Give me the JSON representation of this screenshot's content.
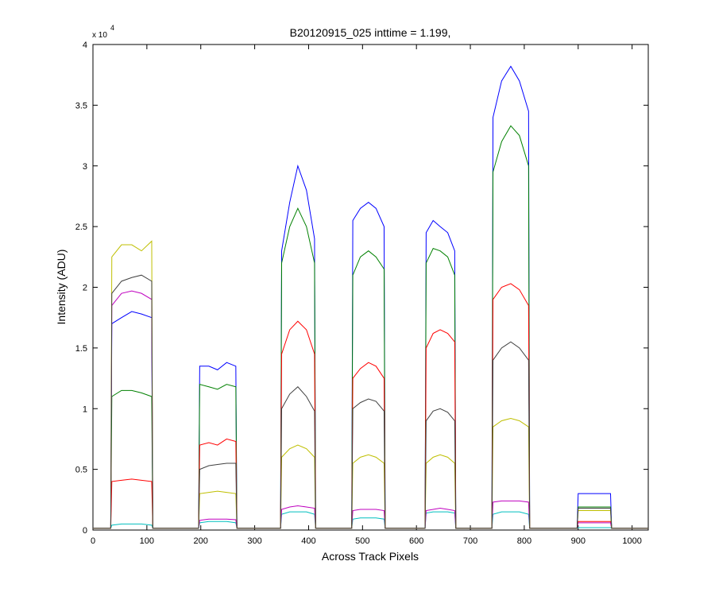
{
  "chart_data": {
    "type": "line",
    "title": "B20120915_025 inttime = 1.199,",
    "x_label": "Across Track Pixels",
    "y_label": "Intensity (ADU)",
    "y_multiplier": {
      "base": "x 10",
      "exponent": 4
    },
    "xlim": [
      0,
      1030
    ],
    "ylim": [
      0,
      40000
    ],
    "xticks": [
      0,
      100,
      200,
      300,
      400,
      500,
      600,
      700,
      800,
      900,
      1000
    ],
    "yticks": [
      0,
      {
        "value": 5000,
        "label": "0.5"
      },
      {
        "value": 10000,
        "label": "1"
      },
      {
        "value": 15000,
        "label": "1.5"
      },
      {
        "value": 20000,
        "label": "2"
      },
      {
        "value": 25000,
        "label": "2.5"
      },
      {
        "value": 30000,
        "label": "3"
      },
      {
        "value": 35000,
        "label": "3.5"
      },
      {
        "value": 40000,
        "label": "4"
      }
    ],
    "x": [
      0,
      33,
      35,
      53,
      72,
      90,
      109,
      111,
      196,
      198,
      215,
      231,
      248,
      265,
      267,
      348,
      350,
      365,
      380,
      396,
      411,
      413,
      480,
      482,
      496,
      511,
      525,
      540,
      542,
      616,
      618,
      631,
      644,
      658,
      671,
      673,
      740,
      742,
      758,
      775,
      791,
      808,
      810,
      898,
      900,
      915,
      930,
      945,
      960,
      962,
      1030
    ],
    "series": [
      {
        "color": "#0000ff",
        "values": [
          150,
          150,
          17000,
          17500,
          18000,
          17800,
          17500,
          150,
          150,
          13500,
          13500,
          13200,
          13800,
          13500,
          150,
          150,
          23000,
          27000,
          30000,
          28000,
          24000,
          150,
          150,
          25500,
          26500,
          27000,
          26500,
          25000,
          150,
          150,
          24500,
          25500,
          25000,
          24500,
          23000,
          150,
          150,
          34000,
          37000,
          38200,
          37000,
          34500,
          150,
          150,
          3000,
          3000,
          3000,
          3000,
          3000,
          150,
          150
        ]
      },
      {
        "color": "#008000",
        "values": [
          150,
          150,
          11000,
          11500,
          11500,
          11300,
          11000,
          150,
          150,
          12000,
          11800,
          11600,
          12000,
          11800,
          150,
          150,
          22000,
          25000,
          26500,
          25000,
          22000,
          150,
          150,
          21000,
          22500,
          23000,
          22500,
          21500,
          150,
          150,
          22000,
          23200,
          23000,
          22500,
          21000,
          150,
          150,
          29500,
          32000,
          33300,
          32500,
          30000,
          150,
          150,
          1900,
          1900,
          1900,
          1900,
          1900,
          150,
          150
        ]
      },
      {
        "color": "#ff0000",
        "values": [
          150,
          150,
          4000,
          4100,
          4200,
          4100,
          4000,
          150,
          150,
          7000,
          7200,
          7000,
          7500,
          7300,
          150,
          150,
          14500,
          16500,
          17200,
          16500,
          14500,
          150,
          150,
          12500,
          13300,
          13800,
          13500,
          12500,
          150,
          150,
          15000,
          16200,
          16500,
          16200,
          15500,
          150,
          150,
          19000,
          20000,
          20300,
          19800,
          18500,
          150,
          150,
          700,
          700,
          700,
          700,
          700,
          150,
          150
        ]
      },
      {
        "color": "#00bfbf",
        "values": [
          150,
          150,
          400,
          500,
          500,
          500,
          400,
          150,
          150,
          600,
          700,
          700,
          700,
          600,
          150,
          150,
          1300,
          1500,
          1500,
          1500,
          1300,
          150,
          150,
          900,
          1000,
          1000,
          1000,
          900,
          150,
          150,
          1400,
          1500,
          1500,
          1500,
          1400,
          150,
          150,
          1300,
          1500,
          1500,
          1500,
          1300,
          150,
          150,
          200,
          200,
          200,
          200,
          200,
          150,
          150
        ]
      },
      {
        "color": "#bf00bf",
        "values": [
          150,
          150,
          18500,
          19500,
          19700,
          19500,
          19000,
          150,
          150,
          800,
          900,
          900,
          900,
          850,
          150,
          150,
          1700,
          1900,
          2000,
          1900,
          1800,
          150,
          150,
          1600,
          1700,
          1700,
          1700,
          1600,
          150,
          150,
          1600,
          1700,
          1800,
          1700,
          1600,
          150,
          150,
          2300,
          2400,
          2400,
          2400,
          2300,
          150,
          150,
          600,
          600,
          600,
          600,
          600,
          150,
          150
        ]
      },
      {
        "color": "#bfbf00",
        "values": [
          150,
          150,
          22500,
          23500,
          23500,
          23000,
          23800,
          150,
          150,
          3000,
          3100,
          3200,
          3100,
          3000,
          150,
          150,
          6000,
          6700,
          7000,
          6700,
          6000,
          150,
          150,
          5500,
          6000,
          6200,
          6000,
          5500,
          150,
          150,
          5500,
          6000,
          6200,
          6000,
          5500,
          150,
          150,
          8500,
          9000,
          9200,
          9000,
          8500,
          150,
          150,
          1600,
          1600,
          1600,
          1600,
          1600,
          150,
          150
        ]
      },
      {
        "color": "#404040",
        "values": [
          150,
          150,
          19500,
          20500,
          20800,
          21000,
          20500,
          150,
          150,
          5000,
          5300,
          5400,
          5500,
          5500,
          150,
          150,
          10000,
          11200,
          11800,
          11000,
          9800,
          150,
          150,
          10000,
          10500,
          10800,
          10600,
          9800,
          150,
          150,
          9000,
          9800,
          10000,
          9700,
          9000,
          150,
          150,
          14000,
          15000,
          15500,
          15000,
          14000,
          150,
          150,
          1800,
          1800,
          1800,
          1800,
          1800,
          150,
          150
        ]
      }
    ]
  }
}
